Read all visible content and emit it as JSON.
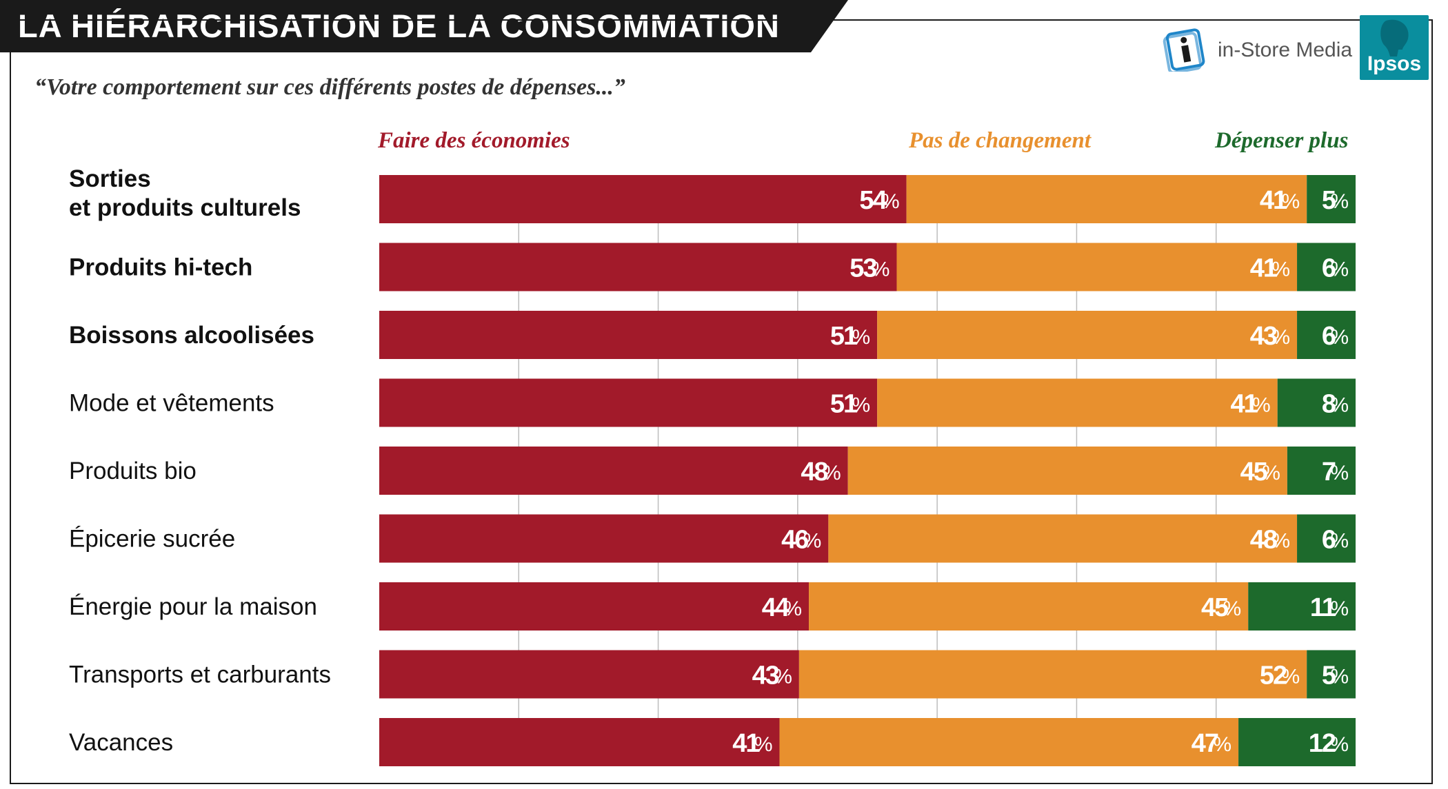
{
  "header": {
    "title": "LA HIÉRARCHISATION DE LA CONSOMMATION",
    "subtitle": "“Votre comportement sur ces différents postes de dépenses...”"
  },
  "logos": {
    "instore_text": "in-Store Media",
    "ipsos_text": "Ipsos"
  },
  "colors": {
    "title_band": "#1a1a1a",
    "economies": "#a21a2a",
    "pas_de_changement": "#e8902e",
    "depenser_plus": "#1d6a2c",
    "ipsos": "#0a8e9e"
  },
  "chart_data": {
    "type": "bar",
    "orientation": "horizontal",
    "stacked": true,
    "title": "LA HIÉRARCHISATION DE LA CONSOMMATION",
    "subtitle": "“Votre comportement sur ces différents postes de dépenses...”",
    "unit": "%",
    "categories": [
      "Sorties\net produits culturels",
      "Produits hi-tech",
      "Boissons alcoolisées",
      "Mode et vêtements",
      "Produits bio",
      "Épicerie sucrée",
      "Énergie pour la maison",
      "Transports et carburants",
      "Vacances"
    ],
    "bold_categories": [
      true,
      true,
      true,
      false,
      false,
      false,
      false,
      false,
      false
    ],
    "series": [
      {
        "name": "Faire des économies",
        "color": "#a21a2a",
        "values": [
          54,
          53,
          51,
          51,
          48,
          46,
          44,
          43,
          41
        ]
      },
      {
        "name": "Pas de changement",
        "color": "#e8902e",
        "values": [
          41,
          41,
          43,
          41,
          45,
          48,
          45,
          52,
          47
        ]
      },
      {
        "name": "Dépenser plus",
        "color": "#1d6a2c",
        "values": [
          5,
          6,
          6,
          8,
          7,
          6,
          11,
          5,
          12
        ]
      }
    ],
    "xlim": [
      0,
      100
    ],
    "grid": true,
    "legend_position": "top"
  }
}
